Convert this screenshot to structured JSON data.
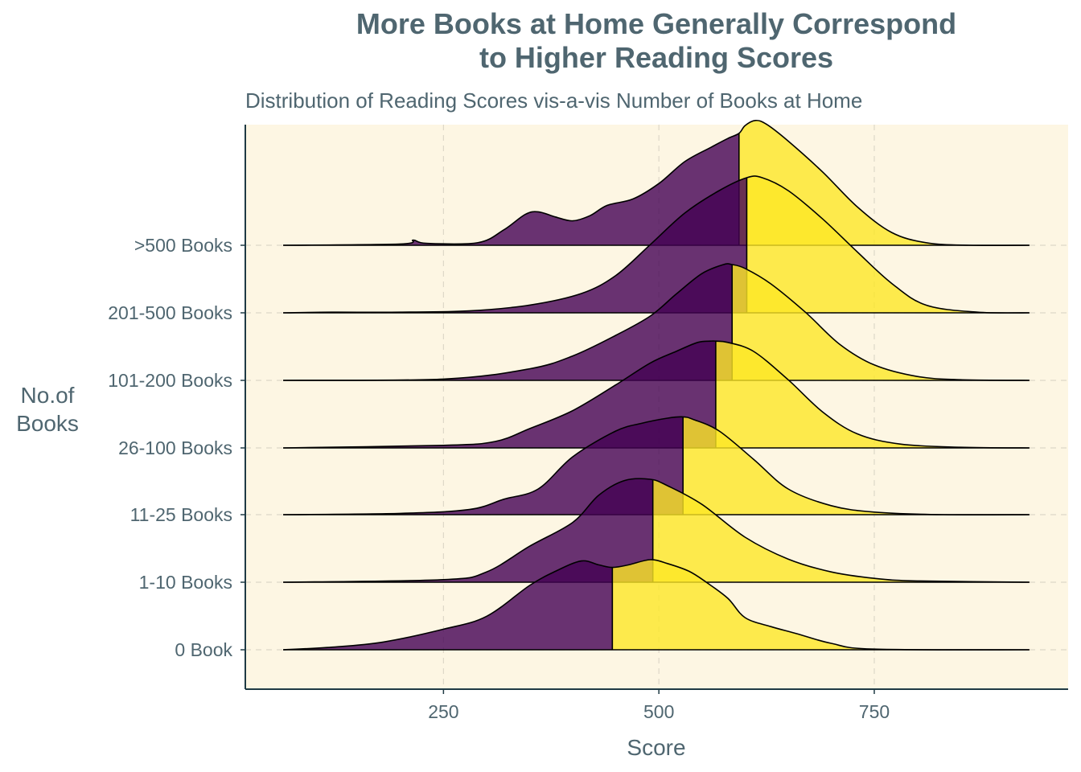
{
  "chart_data": {
    "type": "ridgeline",
    "title_lines": [
      "More Books at Home Generally Correspond",
      "to Higher Reading Scores"
    ],
    "subtitle": "Distribution of Reading Scores vis-a-vis Number of Books at Home",
    "xlabel": "Score",
    "ylabel_lines": [
      "No.of",
      "Books"
    ],
    "xlim": [
      20,
      975
    ],
    "x_ticks": [
      250,
      500,
      750
    ],
    "categories": [
      "0 Book",
      "1-10 Books",
      "11-25 Books",
      "26-100 Books",
      "101-200 Books",
      "201-500 Books",
      ">500 Books"
    ],
    "fill_low_color": "#440154",
    "fill_high_color": "#fde725",
    "panel_color": "#fdf6e3",
    "grid": "dashed, major x and y",
    "series": [
      {
        "name": "0 Book",
        "split": 446,
        "points": [
          [
            64,
            0
          ],
          [
            120,
            0.04
          ],
          [
            180,
            0.12
          ],
          [
            250,
            0.32
          ],
          [
            300,
            0.52
          ],
          [
            350,
            1.0
          ],
          [
            380,
            1.22
          ],
          [
            410,
            1.38
          ],
          [
            430,
            1.32
          ],
          [
            446,
            1.28
          ],
          [
            465,
            1.32
          ],
          [
            490,
            1.4
          ],
          [
            510,
            1.34
          ],
          [
            535,
            1.22
          ],
          [
            555,
            1.05
          ],
          [
            580,
            0.8
          ],
          [
            600,
            0.5
          ],
          [
            630,
            0.36
          ],
          [
            660,
            0.25
          ],
          [
            700,
            0.1
          ],
          [
            750,
            0.01
          ],
          [
            930,
            0
          ]
        ]
      },
      {
        "name": "1-10 Books",
        "split": 493,
        "points": [
          [
            64,
            0
          ],
          [
            250,
            0.04
          ],
          [
            300,
            0.16
          ],
          [
            350,
            0.56
          ],
          [
            400,
            0.93
          ],
          [
            430,
            1.35
          ],
          [
            460,
            1.58
          ],
          [
            490,
            1.6
          ],
          [
            510,
            1.5
          ],
          [
            550,
            1.21
          ],
          [
            600,
            0.7
          ],
          [
            650,
            0.36
          ],
          [
            700,
            0.16
          ],
          [
            750,
            0.06
          ],
          [
            800,
            0.02
          ],
          [
            930,
            0
          ]
        ]
      },
      {
        "name": "11-25 Books",
        "split": 528,
        "points": [
          [
            64,
            0
          ],
          [
            200,
            0.02
          ],
          [
            280,
            0.08
          ],
          [
            320,
            0.24
          ],
          [
            360,
            0.4
          ],
          [
            400,
            0.9
          ],
          [
            450,
            1.3
          ],
          [
            480,
            1.42
          ],
          [
            510,
            1.5
          ],
          [
            528,
            1.52
          ],
          [
            540,
            1.48
          ],
          [
            570,
            1.3
          ],
          [
            610,
            0.86
          ],
          [
            650,
            0.4
          ],
          [
            700,
            0.14
          ],
          [
            750,
            0.04
          ],
          [
            830,
            0
          ],
          [
            930,
            0
          ]
        ]
      },
      {
        "name": "26-100 Books",
        "split": 566,
        "points": [
          [
            64,
            0
          ],
          [
            250,
            0.04
          ],
          [
            310,
            0.1
          ],
          [
            350,
            0.3
          ],
          [
            400,
            0.58
          ],
          [
            450,
            0.98
          ],
          [
            490,
            1.32
          ],
          [
            520,
            1.5
          ],
          [
            545,
            1.64
          ],
          [
            560,
            1.66
          ],
          [
            566,
            1.66
          ],
          [
            580,
            1.64
          ],
          [
            610,
            1.5
          ],
          [
            650,
            1.06
          ],
          [
            690,
            0.56
          ],
          [
            730,
            0.22
          ],
          [
            780,
            0.06
          ],
          [
            850,
            0.01
          ],
          [
            930,
            0
          ]
        ]
      },
      {
        "name": "101-200 Books",
        "split": 585,
        "points": [
          [
            64,
            0
          ],
          [
            250,
            0.02
          ],
          [
            350,
            0.18
          ],
          [
            400,
            0.38
          ],
          [
            450,
            0.7
          ],
          [
            490,
            1.0
          ],
          [
            520,
            1.34
          ],
          [
            550,
            1.66
          ],
          [
            575,
            1.8
          ],
          [
            585,
            1.8
          ],
          [
            600,
            1.74
          ],
          [
            630,
            1.5
          ],
          [
            670,
            1.06
          ],
          [
            710,
            0.56
          ],
          [
            750,
            0.24
          ],
          [
            800,
            0.06
          ],
          [
            850,
            0.01
          ],
          [
            930,
            0
          ]
        ]
      },
      {
        "name": "201-500 Books",
        "split": 602,
        "points": [
          [
            64,
            0
          ],
          [
            120,
            0.01
          ],
          [
            200,
            0.01
          ],
          [
            280,
            0.03
          ],
          [
            350,
            0.12
          ],
          [
            410,
            0.3
          ],
          [
            450,
            0.58
          ],
          [
            490,
            1.06
          ],
          [
            530,
            1.55
          ],
          [
            570,
            1.9
          ],
          [
            602,
            2.1
          ],
          [
            620,
            2.1
          ],
          [
            650,
            1.9
          ],
          [
            690,
            1.46
          ],
          [
            730,
            0.95
          ],
          [
            770,
            0.46
          ],
          [
            810,
            0.12
          ],
          [
            870,
            0.01
          ],
          [
            930,
            0
          ]
        ]
      },
      {
        "name": ">500 Books",
        "split": 593,
        "points": [
          [
            64,
            0
          ],
          [
            200,
            0.02
          ],
          [
            215,
            0.08
          ],
          [
            230,
            0.03
          ],
          [
            290,
            0.04
          ],
          [
            320,
            0.24
          ],
          [
            345,
            0.48
          ],
          [
            360,
            0.52
          ],
          [
            380,
            0.44
          ],
          [
            400,
            0.38
          ],
          [
            420,
            0.46
          ],
          [
            440,
            0.62
          ],
          [
            470,
            0.72
          ],
          [
            500,
            0.96
          ],
          [
            530,
            1.3
          ],
          [
            560,
            1.52
          ],
          [
            580,
            1.66
          ],
          [
            593,
            1.74
          ],
          [
            600,
            1.86
          ],
          [
            612,
            1.94
          ],
          [
            625,
            1.88
          ],
          [
            650,
            1.62
          ],
          [
            690,
            1.14
          ],
          [
            730,
            0.6
          ],
          [
            770,
            0.2
          ],
          [
            810,
            0.04
          ],
          [
            860,
            0
          ],
          [
            930,
            0
          ]
        ]
      }
    ]
  }
}
